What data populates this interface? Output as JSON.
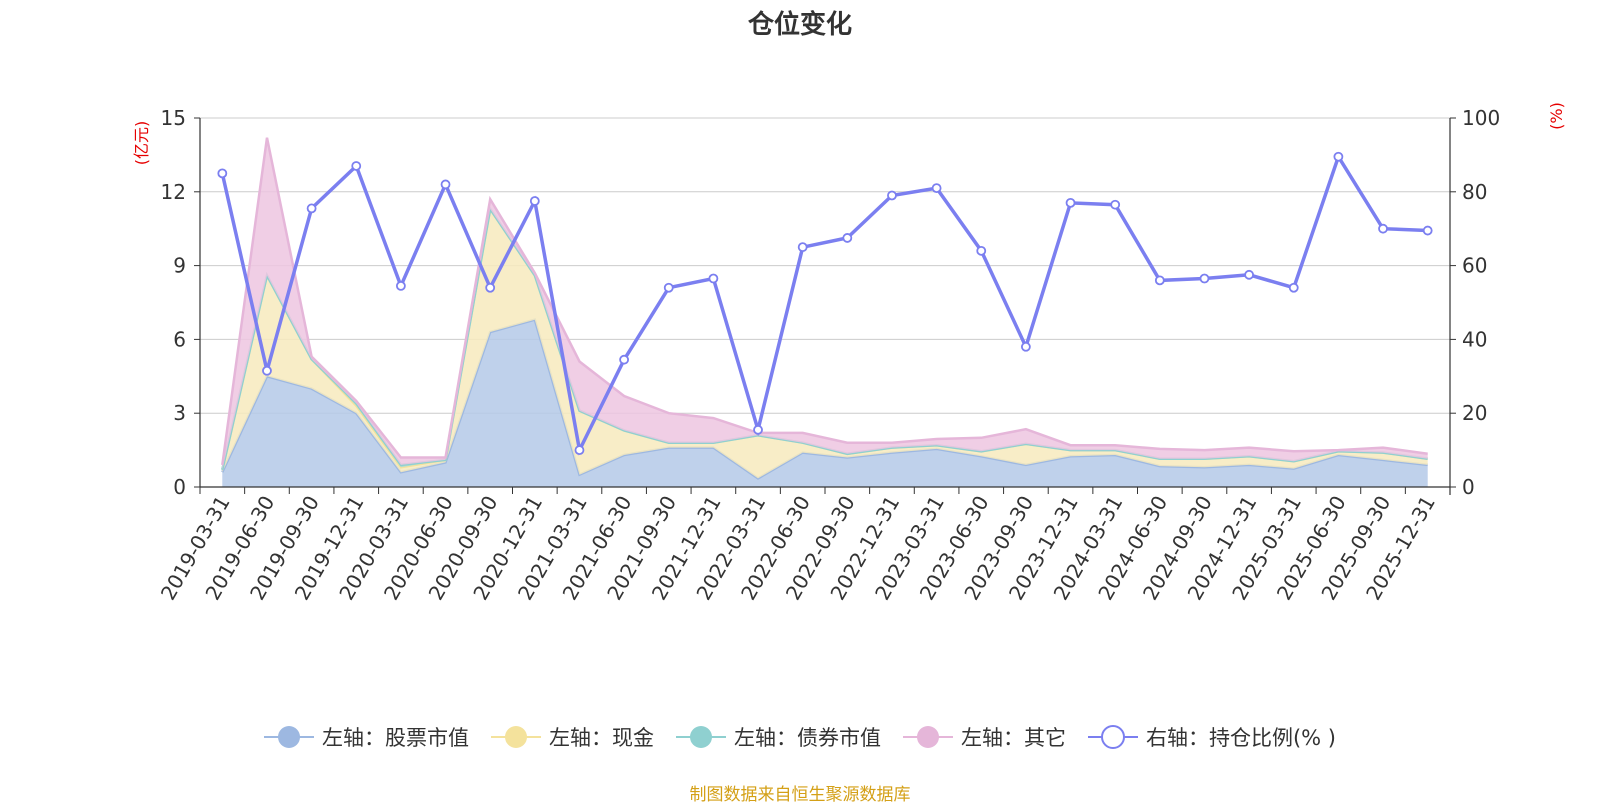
{
  "chart_data": {
    "type": "area",
    "title": "仓位变化",
    "left_axis": {
      "label": "(亿元)",
      "ylim": [
        0,
        15
      ],
      "ticks": [
        0,
        3,
        6,
        9,
        12,
        15
      ]
    },
    "right_axis": {
      "label": "(%)",
      "ylim": [
        0,
        100
      ],
      "ticks": [
        0,
        20,
        40,
        60,
        80,
        100
      ]
    },
    "categories": [
      "2019-03-31",
      "2019-06-30",
      "2019-09-30",
      "2019-12-31",
      "2020-03-31",
      "2020-06-30",
      "2020-09-30",
      "2020-12-31",
      "2021-03-31",
      "2021-06-30",
      "2021-09-30",
      "2021-12-31",
      "2022-03-31",
      "2022-06-30",
      "2022-09-30",
      "2022-12-31",
      "2023-03-31",
      "2023-06-30",
      "2023-09-30",
      "2023-12-31",
      "2024-03-31",
      "2024-06-30",
      "2024-09-30",
      "2024-12-31",
      "2025-03-31",
      "2025-06-30",
      "2025-09-30",
      "2025-12-31"
    ],
    "series": [
      {
        "name": "左轴：股票市值",
        "axis": "left",
        "stack": true,
        "color": "#9db8e1",
        "fill": "#b4c9e8",
        "values": [
          0.6,
          4.5,
          4.0,
          3.0,
          0.6,
          1.0,
          6.3,
          6.8,
          0.5,
          1.3,
          1.6,
          1.6,
          0.35,
          1.4,
          1.2,
          1.4,
          1.55,
          1.25,
          0.9,
          1.25,
          1.3,
          0.85,
          0.8,
          0.9,
          0.75,
          1.3,
          1.1,
          0.9
        ]
      },
      {
        "name": "左轴：现金",
        "axis": "left",
        "stack": true,
        "color": "#f4e29c",
        "fill": "#f7eabd",
        "values": [
          0.1,
          4.1,
          1.2,
          0.3,
          0.2,
          0.1,
          5.0,
          1.8,
          2.6,
          1.0,
          0.2,
          0.2,
          1.75,
          0.4,
          0.15,
          0.2,
          0.15,
          0.2,
          0.85,
          0.25,
          0.2,
          0.3,
          0.35,
          0.35,
          0.3,
          0.15,
          0.3,
          0.25
        ]
      },
      {
        "name": "左轴：债券市值",
        "axis": "left",
        "stack": true,
        "color": "#8fd0d0",
        "fill": "#a6dbdb",
        "values": [
          0,
          0,
          0,
          0.1,
          0.1,
          0,
          0,
          0,
          0,
          0,
          0,
          0,
          0,
          0,
          0,
          0,
          0,
          0,
          0,
          0,
          0,
          0,
          0,
          0,
          0,
          0,
          0,
          0
        ]
      },
      {
        "name": "左轴：其它",
        "axis": "left",
        "stack": true,
        "color": "#e5b6d9",
        "fill": "#edc6e1",
        "values": [
          0.2,
          5.6,
          0.1,
          0.1,
          0.3,
          0.1,
          0.4,
          0.1,
          2.0,
          1.4,
          1.2,
          1.0,
          0.1,
          0.4,
          0.45,
          0.2,
          0.25,
          0.55,
          0.6,
          0.2,
          0.2,
          0.4,
          0.35,
          0.35,
          0.4,
          0.05,
          0.2,
          0.2
        ]
      },
      {
        "name": "右轴：持仓比例(% )",
        "axis": "right",
        "type": "line",
        "color": "#7b7ff0",
        "values": [
          85,
          31.5,
          75.5,
          87,
          54.5,
          82,
          54,
          77.5,
          10,
          34.5,
          54,
          56.5,
          15.5,
          65,
          67.5,
          79,
          81,
          64,
          38,
          77,
          76.5,
          56,
          56.5,
          57.5,
          54,
          89.5,
          70,
          69.5
        ]
      }
    ]
  },
  "source_note": "制图数据来自恒生聚源数据库"
}
